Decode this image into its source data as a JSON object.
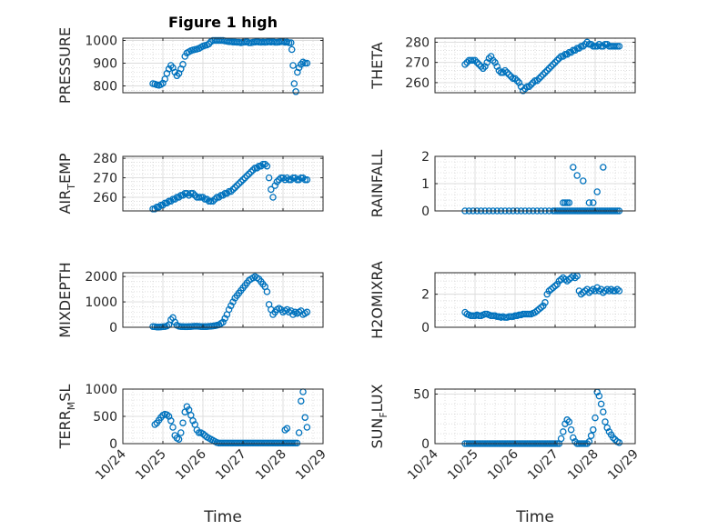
{
  "figure": {
    "title": "Figure 1 high",
    "xlabel": "Time"
  },
  "colors": {
    "marker": "#0072BD",
    "axis": "#262626",
    "grid": "#c8c8c8"
  },
  "chart_data": [
    {
      "type": "scatter",
      "panel": "pressure",
      "ylabel": "PRESSURE",
      "xlim": [
        "10/24",
        "10/29"
      ],
      "ylim": [
        770,
        1010
      ],
      "yticks": [
        800,
        900,
        1000
      ],
      "xticks": [
        "10/24",
        "10/25",
        "10/26",
        "10/27",
        "10/28",
        "10/29"
      ],
      "show_xtick_labels": false,
      "x": [
        0.75,
        0.8,
        0.85,
        0.9,
        0.95,
        1.0,
        1.05,
        1.1,
        1.15,
        1.2,
        1.25,
        1.3,
        1.35,
        1.4,
        1.45,
        1.5,
        1.55,
        1.6,
        1.65,
        1.7,
        1.75,
        1.8,
        1.85,
        1.9,
        1.95,
        2.0,
        2.05,
        2.1,
        2.15,
        2.2,
        2.25,
        2.3,
        2.35,
        2.4,
        2.45,
        2.5,
        2.55,
        2.6,
        2.65,
        2.7,
        2.75,
        2.8,
        2.85,
        2.9,
        2.95,
        3.0,
        3.05,
        3.1,
        3.15,
        3.2,
        3.25,
        3.3,
        3.35,
        3.4,
        3.45,
        3.5,
        3.55,
        3.6,
        3.65,
        3.7,
        3.75,
        3.8,
        3.85,
        3.9,
        3.95,
        4.0,
        4.05,
        4.1,
        4.15,
        4.2,
        4.22,
        4.25,
        4.28,
        4.32,
        4.36,
        4.4,
        4.45,
        4.5,
        4.55,
        4.6
      ],
      "y": [
        810,
        808,
        805,
        803,
        806,
        812,
        830,
        855,
        875,
        890,
        880,
        860,
        845,
        855,
        875,
        895,
        930,
        945,
        950,
        955,
        958,
        960,
        962,
        965,
        970,
        975,
        978,
        980,
        985,
        995,
        1000,
        1000,
        1000,
        1000,
        1000,
        1000,
        998,
        997,
        995,
        995,
        993,
        993,
        992,
        992,
        990,
        992,
        993,
        995,
        990,
        990,
        992,
        993,
        995,
        993,
        992,
        993,
        992,
        993,
        995,
        993,
        995,
        992,
        992,
        993,
        995,
        995,
        992,
        993,
        990,
        990,
        960,
        890,
        810,
        775,
        860,
        880,
        895,
        905,
        900,
        900
      ]
    },
    {
      "type": "scatter",
      "panel": "theta",
      "ylabel": "THETA",
      "xlim": [
        "10/24",
        "10/29"
      ],
      "ylim": [
        255,
        282
      ],
      "yticks": [
        260,
        270,
        280
      ],
      "xticks": [
        "10/24",
        "10/25",
        "10/26",
        "10/27",
        "10/28",
        "10/29"
      ],
      "show_xtick_labels": false,
      "x": [
        0.75,
        0.8,
        0.85,
        0.9,
        0.95,
        1.0,
        1.05,
        1.1,
        1.15,
        1.2,
        1.25,
        1.3,
        1.35,
        1.4,
        1.45,
        1.5,
        1.55,
        1.6,
        1.65,
        1.7,
        1.75,
        1.8,
        1.85,
        1.9,
        1.95,
        2.0,
        2.05,
        2.1,
        2.15,
        2.2,
        2.25,
        2.3,
        2.35,
        2.4,
        2.45,
        2.5,
        2.55,
        2.6,
        2.65,
        2.7,
        2.75,
        2.8,
        2.85,
        2.9,
        2.95,
        3.0,
        3.05,
        3.1,
        3.15,
        3.2,
        3.25,
        3.3,
        3.35,
        3.4,
        3.45,
        3.5,
        3.55,
        3.6,
        3.65,
        3.7,
        3.75,
        3.8,
        3.85,
        3.9,
        3.95,
        4.0,
        4.05,
        4.1,
        4.15,
        4.2,
        4.25,
        4.3,
        4.35,
        4.4,
        4.45,
        4.5,
        4.55,
        4.6
      ],
      "y": [
        269,
        270,
        271,
        271,
        271,
        271,
        270,
        269,
        268,
        267,
        268,
        270,
        272,
        273,
        271,
        270,
        268,
        266,
        265,
        265,
        266,
        265,
        264,
        263,
        262,
        262,
        261,
        260,
        258,
        256,
        257,
        258,
        258,
        259,
        260,
        261,
        261,
        262,
        263,
        264,
        265,
        266,
        267,
        268,
        269,
        270,
        271,
        272,
        273,
        273,
        274,
        274,
        275,
        275,
        276,
        276,
        277,
        277,
        278,
        278,
        279,
        280,
        279,
        279,
        278,
        278,
        278,
        279,
        278,
        278,
        279,
        279,
        278,
        278,
        278,
        278,
        278,
        278
      ]
    },
    {
      "type": "scatter",
      "panel": "air_temp",
      "ylabel": "AIR_TEMP",
      "xlim": [
        "10/24",
        "10/29"
      ],
      "ylim": [
        253,
        281
      ],
      "yticks": [
        260,
        270,
        280
      ],
      "xticks": [
        "10/24",
        "10/25",
        "10/26",
        "10/27",
        "10/28",
        "10/29"
      ],
      "show_xtick_labels": false,
      "x": [
        0.75,
        0.8,
        0.85,
        0.9,
        0.95,
        1.0,
        1.05,
        1.1,
        1.15,
        1.2,
        1.25,
        1.3,
        1.35,
        1.4,
        1.45,
        1.5,
        1.55,
        1.6,
        1.65,
        1.7,
        1.75,
        1.8,
        1.85,
        1.9,
        1.95,
        2.0,
        2.05,
        2.1,
        2.15,
        2.2,
        2.25,
        2.3,
        2.35,
        2.4,
        2.45,
        2.5,
        2.55,
        2.6,
        2.65,
        2.7,
        2.75,
        2.8,
        2.85,
        2.9,
        2.95,
        3.0,
        3.05,
        3.1,
        3.15,
        3.2,
        3.25,
        3.3,
        3.35,
        3.4,
        3.45,
        3.5,
        3.55,
        3.6,
        3.65,
        3.7,
        3.75,
        3.8,
        3.85,
        3.9,
        3.95,
        4.0,
        4.05,
        4.1,
        4.15,
        4.2,
        4.25,
        4.3,
        4.35,
        4.4,
        4.45,
        4.5,
        4.55,
        4.6
      ],
      "y": [
        254,
        254,
        255,
        255,
        256,
        256,
        257,
        257,
        258,
        258,
        259,
        259,
        260,
        260,
        261,
        261,
        262,
        262,
        261,
        262,
        262,
        261,
        260,
        260,
        260,
        260,
        259,
        259,
        258,
        258,
        258,
        259,
        260,
        260,
        261,
        261,
        262,
        262,
        263,
        263,
        264,
        265,
        266,
        267,
        268,
        269,
        270,
        271,
        272,
        273,
        274,
        275,
        275,
        276,
        276,
        277,
        277,
        276,
        270,
        264,
        260,
        266,
        268,
        269,
        270,
        270,
        269,
        270,
        269,
        269,
        270,
        270,
        269,
        269,
        270,
        270,
        269,
        269
      ]
    },
    {
      "type": "scatter",
      "panel": "rainfall",
      "ylabel": "RAINFALL",
      "xlim": [
        "10/24",
        "10/29"
      ],
      "ylim": [
        0,
        2
      ],
      "yticks": [
        0,
        1,
        2
      ],
      "xticks": [
        "10/24",
        "10/25",
        "10/26",
        "10/27",
        "10/28",
        "10/29"
      ],
      "show_xtick_labels": false,
      "x": [
        0.75,
        0.85,
        0.95,
        1.05,
        1.15,
        1.25,
        1.35,
        1.45,
        1.55,
        1.65,
        1.75,
        1.85,
        1.95,
        2.05,
        2.15,
        2.25,
        2.35,
        2.45,
        2.55,
        2.65,
        2.75,
        2.85,
        2.95,
        3.0,
        3.05,
        3.1,
        3.15,
        3.2,
        3.25,
        3.3,
        3.35,
        3.4,
        3.45,
        3.5,
        3.55,
        3.6,
        3.65,
        3.7,
        3.75,
        3.8,
        3.85,
        3.9,
        3.95,
        4.0,
        4.05,
        4.1,
        4.15,
        4.2,
        4.25,
        4.3,
        4.35,
        4.4,
        4.45,
        4.5,
        4.55,
        4.6,
        3.2,
        3.35,
        3.25,
        3.3,
        3.45,
        3.55,
        3.7,
        3.85,
        3.95,
        4.05,
        4.2
      ],
      "y": [
        0,
        0,
        0,
        0,
        0,
        0,
        0,
        0,
        0,
        0,
        0,
        0,
        0,
        0,
        0,
        0,
        0,
        0,
        0,
        0,
        0,
        0,
        0,
        0,
        0,
        0,
        0,
        0,
        0,
        0,
        0,
        0,
        0,
        0,
        0,
        0,
        0,
        0,
        0,
        0,
        0,
        0,
        0,
        0,
        0,
        0,
        0,
        0,
        0,
        0,
        0,
        0,
        0,
        0,
        0,
        0,
        0.3,
        0.3,
        0.3,
        0.3,
        1.6,
        1.3,
        1.1,
        0.3,
        0.3,
        0.7,
        1.6
      ]
    },
    {
      "type": "scatter",
      "panel": "mixdepth",
      "ylabel": "MIXDEPTH",
      "xlim": [
        "10/24",
        "10/29"
      ],
      "ylim": [
        0,
        2150
      ],
      "yticks": [
        0,
        1000,
        2000
      ],
      "xticks": [
        "10/24",
        "10/25",
        "10/26",
        "10/27",
        "10/28",
        "10/29"
      ],
      "show_xtick_labels": false,
      "x": [
        0.75,
        0.8,
        0.85,
        0.9,
        0.95,
        1.0,
        1.05,
        1.1,
        1.15,
        1.2,
        1.25,
        1.3,
        1.35,
        1.4,
        1.45,
        1.5,
        1.55,
        1.6,
        1.65,
        1.7,
        1.75,
        1.8,
        1.85,
        1.9,
        1.95,
        2.0,
        2.05,
        2.1,
        2.15,
        2.2,
        2.25,
        2.3,
        2.35,
        2.4,
        2.45,
        2.5,
        2.55,
        2.6,
        2.65,
        2.7,
        2.75,
        2.8,
        2.85,
        2.9,
        2.95,
        3.0,
        3.05,
        3.1,
        3.15,
        3.2,
        3.25,
        3.3,
        3.35,
        3.4,
        3.45,
        3.5,
        3.55,
        3.6,
        3.65,
        3.7,
        3.75,
        3.8,
        3.85,
        3.9,
        3.95,
        4.0,
        4.05,
        4.1,
        4.15,
        4.2,
        4.25,
        4.3,
        4.35,
        4.4,
        4.45,
        4.5,
        4.55,
        4.6
      ],
      "y": [
        30,
        20,
        10,
        10,
        15,
        20,
        30,
        50,
        100,
        300,
        380,
        200,
        80,
        40,
        30,
        25,
        20,
        20,
        25,
        30,
        35,
        40,
        40,
        35,
        30,
        25,
        25,
        30,
        35,
        40,
        50,
        60,
        80,
        100,
        150,
        200,
        350,
        500,
        700,
        850,
        1000,
        1150,
        1250,
        1350,
        1450,
        1550,
        1650,
        1750,
        1850,
        1900,
        1950,
        2000,
        1950,
        1900,
        1800,
        1700,
        1600,
        1400,
        900,
        700,
        500,
        600,
        700,
        750,
        700,
        600,
        650,
        700,
        600,
        650,
        500,
        600,
        550,
        600,
        650,
        500,
        550,
        600
      ]
    },
    {
      "type": "scatter",
      "panel": "h2omixra",
      "ylabel": "H2OMIXRA",
      "xlim": [
        "10/24",
        "10/29"
      ],
      "ylim": [
        0,
        3.3
      ],
      "yticks": [
        0,
        2
      ],
      "xticks": [
        "10/24",
        "10/25",
        "10/26",
        "10/27",
        "10/28",
        "10/29"
      ],
      "show_xtick_labels": false,
      "x": [
        0.75,
        0.8,
        0.85,
        0.9,
        0.95,
        1.0,
        1.05,
        1.1,
        1.15,
        1.2,
        1.25,
        1.3,
        1.35,
        1.4,
        1.45,
        1.5,
        1.55,
        1.6,
        1.65,
        1.7,
        1.75,
        1.8,
        1.85,
        1.9,
        1.95,
        2.0,
        2.05,
        2.1,
        2.15,
        2.2,
        2.25,
        2.3,
        2.35,
        2.4,
        2.45,
        2.5,
        2.55,
        2.6,
        2.65,
        2.7,
        2.75,
        2.8,
        2.85,
        2.9,
        2.95,
        3.0,
        3.05,
        3.1,
        3.15,
        3.2,
        3.25,
        3.3,
        3.35,
        3.4,
        3.45,
        3.5,
        3.55,
        3.6,
        3.65,
        3.7,
        3.75,
        3.8,
        3.85,
        3.9,
        3.95,
        4.0,
        4.05,
        4.1,
        4.15,
        4.2,
        4.25,
        4.3,
        4.35,
        4.4,
        4.45,
        4.5,
        4.55,
        4.6
      ],
      "y": [
        0.9,
        0.8,
        0.75,
        0.7,
        0.7,
        0.7,
        0.75,
        0.7,
        0.7,
        0.75,
        0.8,
        0.8,
        0.75,
        0.7,
        0.7,
        0.7,
        0.65,
        0.65,
        0.6,
        0.65,
        0.6,
        0.6,
        0.65,
        0.65,
        0.65,
        0.7,
        0.7,
        0.75,
        0.75,
        0.8,
        0.8,
        0.8,
        0.8,
        0.8,
        0.85,
        0.9,
        1.0,
        1.1,
        1.2,
        1.3,
        1.5,
        2.0,
        2.2,
        2.3,
        2.4,
        2.5,
        2.6,
        2.8,
        2.9,
        3.0,
        2.9,
        2.8,
        2.9,
        3.0,
        3.1,
        3.0,
        3.1,
        2.2,
        2.0,
        2.1,
        2.2,
        2.3,
        2.1,
        2.2,
        2.3,
        2.2,
        2.4,
        2.2,
        2.3,
        2.1,
        2.2,
        2.3,
        2.2,
        2.3,
        2.2,
        2.2,
        2.3,
        2.2
      ]
    },
    {
      "type": "scatter",
      "panel": "terr_msl",
      "ylabel": "TERR_MSL",
      "xlim": [
        "10/24",
        "10/29"
      ],
      "ylim": [
        0,
        1000
      ],
      "yticks": [
        0,
        500,
        1000
      ],
      "xticks": [
        "10/24",
        "10/25",
        "10/26",
        "10/27",
        "10/28",
        "10/29"
      ],
      "show_xtick_labels": true,
      "x": [
        0.8,
        0.85,
        0.9,
        0.95,
        1.0,
        1.05,
        1.1,
        1.15,
        1.2,
        1.25,
        1.3,
        1.35,
        1.4,
        1.45,
        1.5,
        1.55,
        1.6,
        1.65,
        1.7,
        1.75,
        1.8,
        1.85,
        1.9,
        1.95,
        2.0,
        2.05,
        2.1,
        2.15,
        2.2,
        2.25,
        2.3,
        2.35,
        2.4,
        2.45,
        2.5,
        2.55,
        2.6,
        2.65,
        2.7,
        2.75,
        2.8,
        2.85,
        2.9,
        2.95,
        3.0,
        3.05,
        3.1,
        3.15,
        3.2,
        3.25,
        3.3,
        3.35,
        3.4,
        3.45,
        3.5,
        3.55,
        3.6,
        3.65,
        3.7,
        3.75,
        3.8,
        3.85,
        3.9,
        3.95,
        4.0,
        4.05,
        4.1,
        4.15,
        4.2,
        4.25,
        4.3,
        4.35,
        4.4,
        4.45,
        4.5,
        4.55,
        4.6,
        4.05,
        4.1
      ],
      "y": [
        350,
        380,
        430,
        480,
        520,
        540,
        530,
        500,
        420,
        300,
        150,
        100,
        80,
        200,
        380,
        580,
        680,
        620,
        520,
        420,
        350,
        250,
        200,
        200,
        180,
        150,
        120,
        100,
        80,
        60,
        40,
        20,
        10,
        10,
        10,
        10,
        10,
        10,
        10,
        10,
        10,
        10,
        10,
        10,
        10,
        10,
        10,
        10,
        10,
        10,
        10,
        10,
        10,
        10,
        10,
        10,
        10,
        10,
        10,
        10,
        10,
        10,
        10,
        10,
        10,
        10,
        10,
        10,
        10,
        10,
        10,
        10,
        200,
        780,
        950,
        480,
        300,
        250,
        280
      ]
    },
    {
      "type": "scatter",
      "panel": "sun_flux",
      "ylabel": "SUN_FLUX",
      "xlim": [
        "10/24",
        "10/29"
      ],
      "ylim": [
        0,
        55
      ],
      "yticks": [
        0,
        50
      ],
      "xticks": [
        "10/24",
        "10/25",
        "10/26",
        "10/27",
        "10/28",
        "10/29"
      ],
      "show_xtick_labels": true,
      "x": [
        0.75,
        0.8,
        0.85,
        0.9,
        0.95,
        1.0,
        1.05,
        1.1,
        1.15,
        1.2,
        1.25,
        1.3,
        1.35,
        1.4,
        1.45,
        1.5,
        1.55,
        1.6,
        1.65,
        1.7,
        1.75,
        1.8,
        1.85,
        1.9,
        1.95,
        2.0,
        2.05,
        2.1,
        2.15,
        2.2,
        2.25,
        2.3,
        2.35,
        2.4,
        2.45,
        2.5,
        2.55,
        2.6,
        2.65,
        2.7,
        2.75,
        2.8,
        2.85,
        2.9,
        2.95,
        3.0,
        3.05,
        3.1,
        3.15,
        3.2,
        3.25,
        3.3,
        3.35,
        3.4,
        3.45,
        3.5,
        3.55,
        3.6,
        3.65,
        3.7,
        3.75,
        3.8,
        3.85,
        3.9,
        3.95,
        4.0,
        4.05,
        4.1,
        4.15,
        4.2,
        4.25,
        4.3,
        4.35,
        4.4,
        4.45,
        4.5,
        4.55,
        4.6
      ],
      "y": [
        0,
        0,
        0,
        0,
        0,
        0,
        0,
        0,
        0,
        0,
        0,
        0,
        0,
        0,
        0,
        0,
        0,
        0,
        0,
        0,
        0,
        0,
        0,
        0,
        0,
        0,
        0,
        0,
        0,
        0,
        0,
        0,
        0,
        0,
        0,
        0,
        0,
        0,
        0,
        0,
        0,
        0,
        0,
        0,
        0,
        0,
        0,
        0,
        5,
        12,
        20,
        24,
        22,
        14,
        6,
        2,
        0,
        0,
        0,
        0,
        0,
        0,
        2,
        8,
        14,
        26,
        52,
        48,
        40,
        32,
        22,
        16,
        12,
        9,
        6,
        4,
        2,
        1
      ]
    }
  ]
}
